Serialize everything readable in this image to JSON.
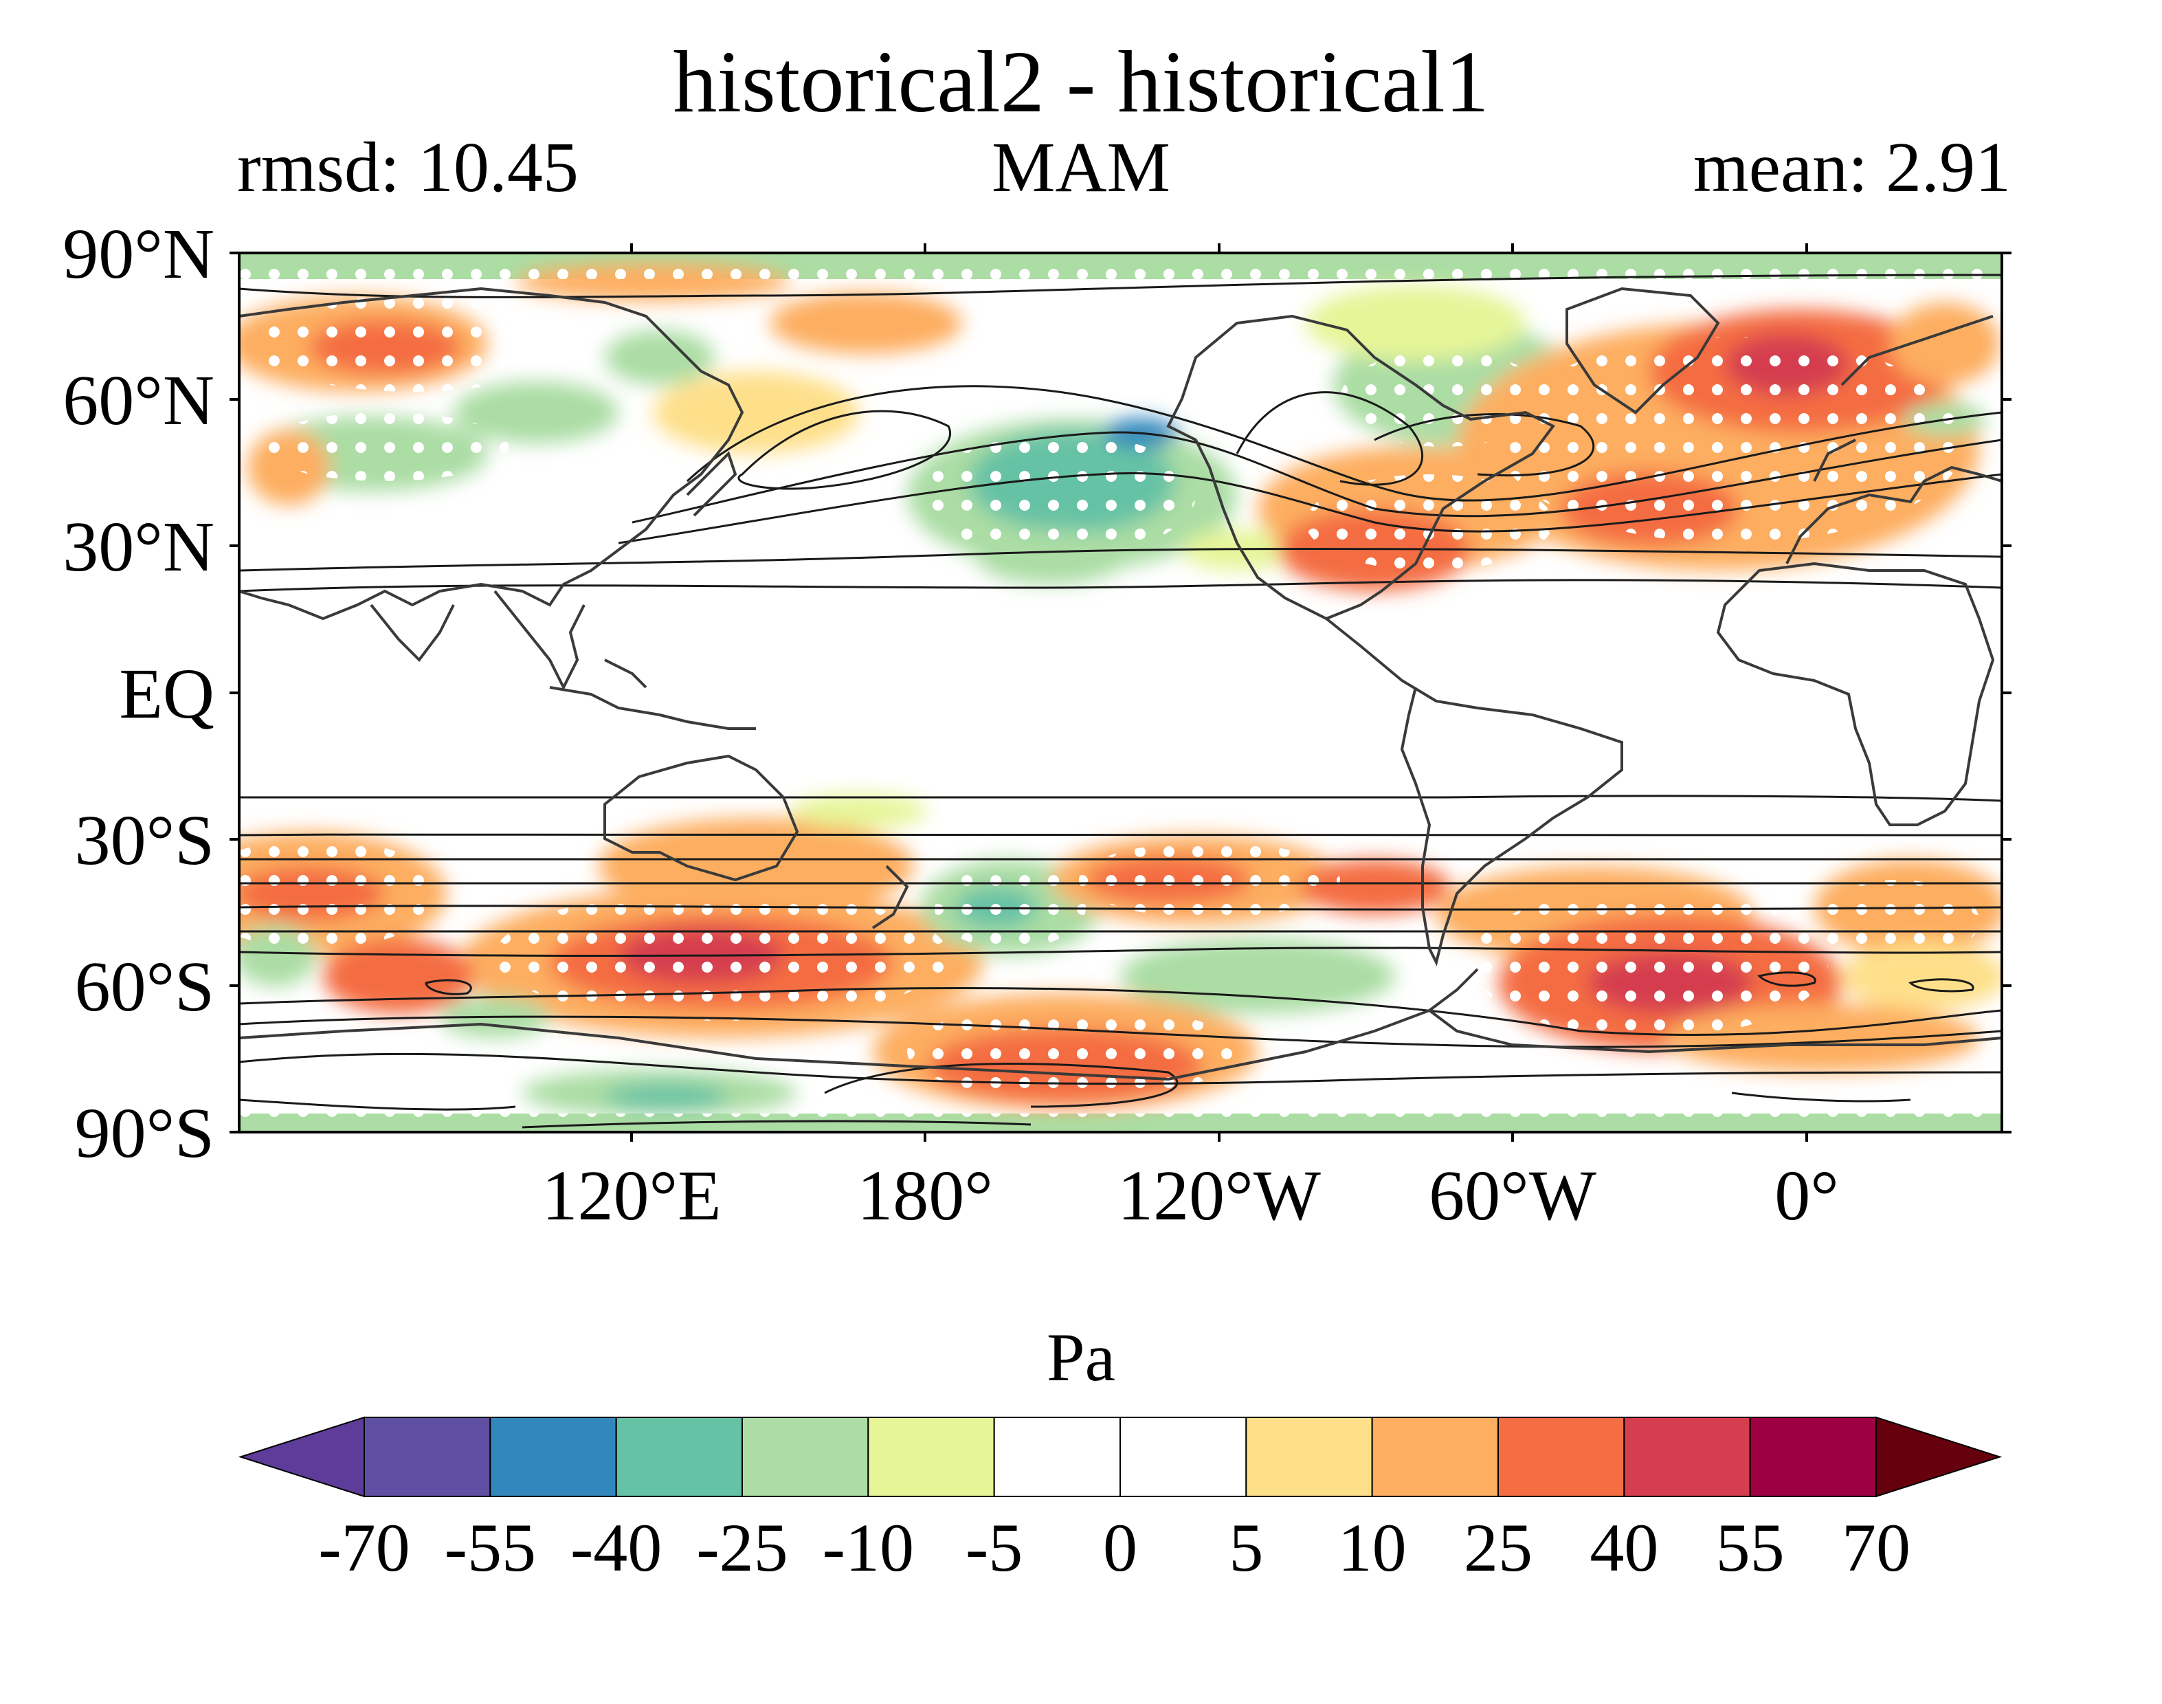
{
  "title": "historical2 - historical1",
  "subtitle_left": "rmsd: 10.45",
  "subtitle_center": "MAM",
  "subtitle_right": "mean: 2.91",
  "map": {
    "projection": "PlateCarree, centered at 150°E",
    "lat_ticks": [
      "90°N",
      "60°N",
      "30°N",
      "EQ",
      "30°S",
      "60°S",
      "90°S"
    ],
    "lon_ticks": [
      "120°E",
      "180°",
      "120°W",
      "60°W",
      "0°"
    ],
    "filled_contours": "difference field (shading)",
    "line_contours": "climatology (black lines)",
    "stippling": "white dots = significant"
  },
  "colorbar": {
    "unit": "Pa",
    "levels": [
      "-70",
      "-55",
      "-40",
      "-25",
      "-10",
      "-5",
      "0",
      "5",
      "10",
      "25",
      "40",
      "55",
      "70"
    ],
    "colors": [
      "#5e3c99",
      "#5e4fa2",
      "#3288bd",
      "#66c2a5",
      "#abdda4",
      "#e6f598",
      "#ffffff",
      "#ffffff",
      "#fee08b",
      "#fdae61",
      "#f46d43",
      "#d53e4f",
      "#9e0142",
      "#67000d"
    ],
    "extend": "both"
  }
}
